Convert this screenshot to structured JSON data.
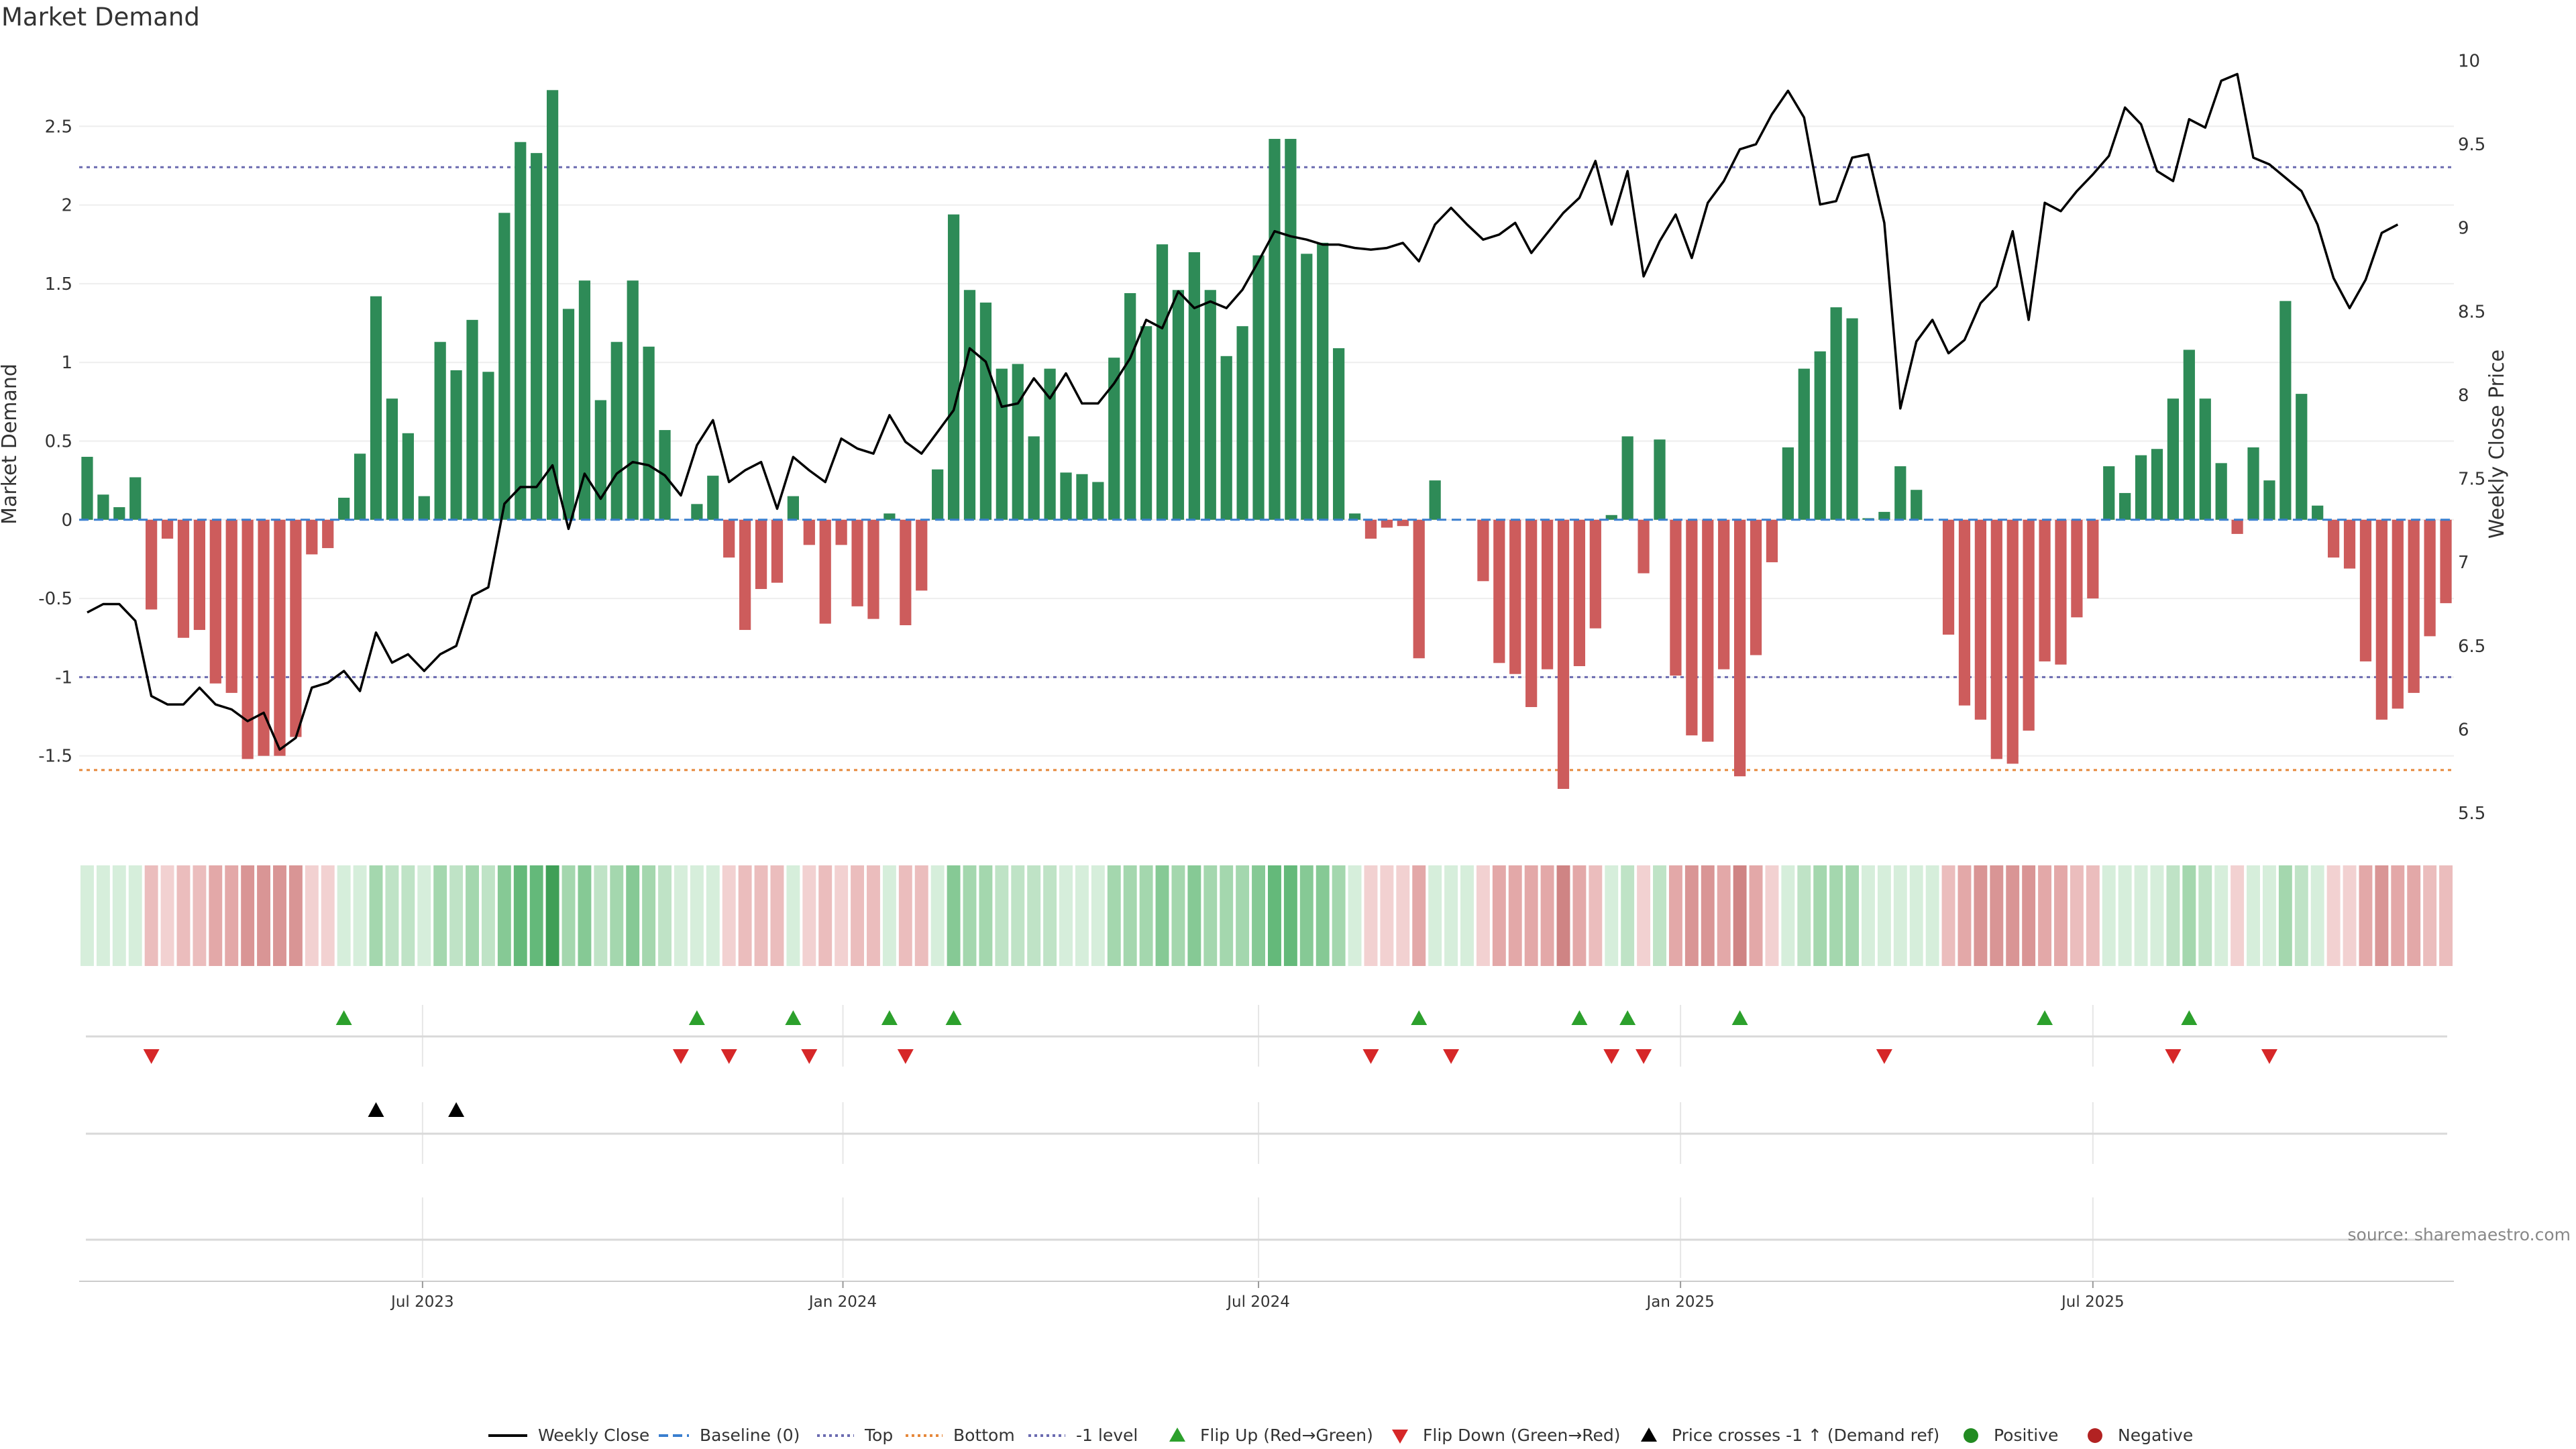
{
  "chart_data": {
    "type": "bar",
    "title": "Market Demand",
    "ylabel": "Market Demand",
    "y2label": "Weekly Close Price",
    "ylim": [
      -1.97,
      2.97
    ],
    "y2lim": [
      5.4,
      10.05
    ],
    "yticks": [
      2.5,
      2,
      1.5,
      1,
      0.5,
      0,
      -0.5,
      -1,
      -1.5
    ],
    "y2ticks": [
      10,
      9.5,
      9,
      8.5,
      8,
      7.5,
      7,
      6.5,
      6,
      5.5
    ],
    "x_labels": [
      "Jul 2023",
      "Jan 2024",
      "Jul 2024",
      "Jan 2025",
      "Jul 2025"
    ],
    "x_label_weeks": [
      21.4,
      47.6,
      73.5,
      99.8,
      125.5
    ],
    "reference_lines": [
      {
        "name": "Top",
        "value": 2.24,
        "color": "#6b6bb0"
      },
      {
        "name": "-1 level",
        "value": -1,
        "color": "#6b6bb0"
      },
      {
        "name": "Bottom",
        "value": -1.59,
        "color": "#e6883a"
      }
    ],
    "demand": [
      0.4,
      0.16,
      0.08,
      0.27,
      -0.57,
      -0.12,
      -0.75,
      -0.7,
      -1.04,
      -1.1,
      -1.52,
      -1.5,
      -1.5,
      -1.38,
      -0.22,
      -0.18,
      0.14,
      0.42,
      1.42,
      0.77,
      0.55,
      0.15,
      1.13,
      0.95,
      1.27,
      0.94,
      1.95,
      2.4,
      2.33,
      2.73,
      1.34,
      1.52,
      0.76,
      1.13,
      1.52,
      1.1,
      0.57,
      0,
      0.1,
      0.28,
      -0.24,
      -0.7,
      -0.44,
      -0.4,
      0.15,
      -0.16,
      -0.66,
      -0.16,
      -0.55,
      -0.63,
      0.04,
      -0.67,
      -0.45,
      0.32,
      1.94,
      1.46,
      1.38,
      0.96,
      0.99,
      0.53,
      0.96,
      0.3,
      0.29,
      0.24,
      1.03,
      1.44,
      1.23,
      1.75,
      1.46,
      1.7,
      1.46,
      1.04,
      1.23,
      1.68,
      2.42,
      2.42,
      1.69,
      1.76,
      1.09,
      0.04,
      -0.12,
      -0.05,
      -0.04,
      -0.88,
      0.25,
      0,
      0,
      -0.39,
      -0.91,
      -0.98,
      -1.19,
      -0.95,
      -1.71,
      -0.93,
      -0.69,
      0.03,
      0.53,
      -0.34,
      0.51,
      -0.99,
      -1.37,
      -1.41,
      -0.95,
      -1.63,
      -0.86,
      -0.27,
      0.46,
      0.96,
      1.07,
      1.35,
      1.28,
      0.01,
      0.05,
      0.34,
      0.19,
      0,
      -0.73,
      -1.18,
      -1.27,
      -1.52,
      -1.55,
      -1.34,
      -0.9,
      -0.92,
      -0.62,
      -0.5,
      0.34,
      0.17,
      0.41,
      0.45,
      0.77,
      1.08,
      0.77,
      0.36,
      -0.09,
      0.46,
      0.25,
      1.39,
      0.8,
      0.09,
      -0.24,
      -0.31,
      -0.9,
      -1.27,
      -1.2,
      -1.1,
      -0.74,
      -0.53
    ],
    "weekly_close": [
      6.7,
      6.75,
      6.75,
      6.65,
      6.2,
      6.15,
      6.15,
      6.25,
      6.15,
      6.12,
      6.05,
      6.1,
      5.88,
      5.95,
      6.25,
      6.28,
      6.35,
      6.23,
      6.58,
      6.4,
      6.45,
      6.35,
      6.45,
      6.5,
      6.8,
      6.85,
      7.35,
      7.45,
      7.45,
      7.58,
      7.2,
      7.53,
      7.38,
      7.53,
      7.6,
      7.58,
      7.52,
      7.4,
      7.7,
      7.85,
      7.48,
      7.55,
      7.6,
      7.32,
      7.63,
      7.55,
      7.48,
      7.74,
      7.68,
      7.65,
      7.88,
      7.72,
      7.65,
      7.78,
      7.91,
      8.28,
      8.2,
      7.93,
      7.95,
      8.1,
      7.98,
      8.13,
      7.95,
      7.95,
      8.07,
      8.22,
      8.45,
      8.4,
      8.62,
      8.52,
      8.56,
      8.52,
      8.63,
      8.8,
      8.98,
      8.95,
      8.93,
      8.9,
      8.9,
      8.88,
      8.87,
      8.88,
      8.91,
      8.8,
      9.02,
      9.12,
      9.02,
      8.93,
      8.96,
      9.03,
      8.85,
      8.97,
      9.09,
      9.18,
      9.4,
      9.02,
      9.34,
      8.71,
      8.92,
      9.08,
      8.82,
      9.15,
      9.28,
      9.47,
      9.5,
      9.68,
      9.82,
      9.66,
      9.14,
      9.16,
      9.42,
      9.44,
      9.03,
      7.92,
      8.32,
      8.45,
      8.25,
      8.33,
      8.55,
      8.65,
      8.98,
      8.45,
      9.15,
      9.1,
      9.22,
      9.32,
      9.43,
      9.72,
      9.62,
      9.34,
      9.28,
      9.65,
      9.6,
      9.88,
      9.92,
      9.42,
      9.38,
      9.3,
      9.22,
      9.02,
      8.7,
      8.52,
      8.69,
      8.97,
      9.02
    ],
    "flip_up_weeks": [
      16,
      38,
      44,
      50,
      54,
      83,
      93,
      96,
      103,
      122,
      131
    ],
    "flip_down_weeks": [
      4,
      37,
      40,
      45,
      51,
      80,
      85,
      95,
      97,
      112,
      130,
      136
    ],
    "price_cross_weeks": [
      18,
      23
    ],
    "legend": [
      "Weekly Close",
      "Baseline (0)",
      "Top",
      "Bottom",
      "-1 level",
      "Flip Up (Red→Green)",
      "Flip Down (Green→Red)",
      "Price crosses -1 ↑ (Demand ref)",
      "Positive",
      "Negative"
    ],
    "source": "source: sharemaestro.com"
  },
  "colors": {
    "positive": "#2e8b57",
    "negative": "#cd5c5c",
    "line": "#000000",
    "baseline": "#3a7fcf",
    "reference": "#6b6bb0",
    "bottom": "#e6883a",
    "flip_up": "#2ca02c",
    "flip_down": "#d62728",
    "cross": "#000000"
  }
}
